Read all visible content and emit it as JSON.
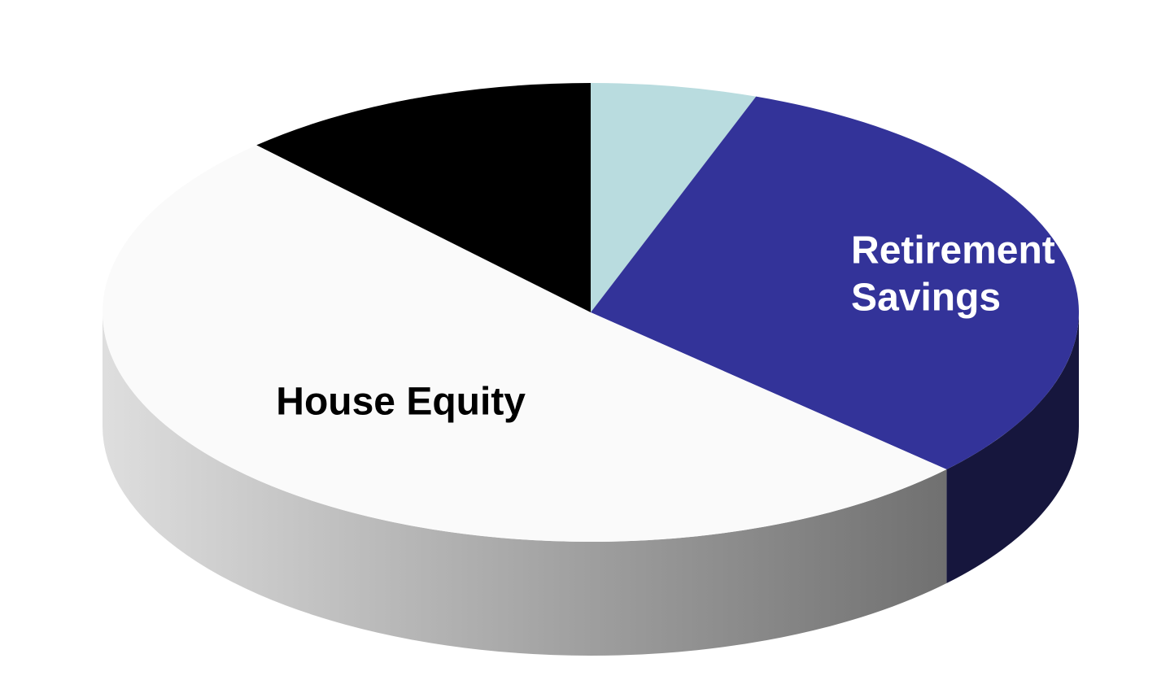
{
  "chart_data": {
    "type": "pie",
    "title": "",
    "style": "3d",
    "start": "12 o'clock",
    "direction": "clockwise",
    "slices": [
      {
        "label": "",
        "value": 5.5,
        "color": "#b9dcdf"
      },
      {
        "label": "Retirement Savings",
        "label_lines": [
          "Retirement",
          "Savings"
        ],
        "value": 31.5,
        "color": "#333399",
        "side_color": "#16163d",
        "label_color": "#ffffff"
      },
      {
        "label": "House Equity",
        "label_lines": [
          "House Equity"
        ],
        "value": 51,
        "color": "#fafafa",
        "label_color": "#000000"
      },
      {
        "label": "",
        "value": 12,
        "color": "#000000"
      }
    ],
    "side_gradient": [
      "#dedede",
      "#5f5f5f"
    ]
  }
}
